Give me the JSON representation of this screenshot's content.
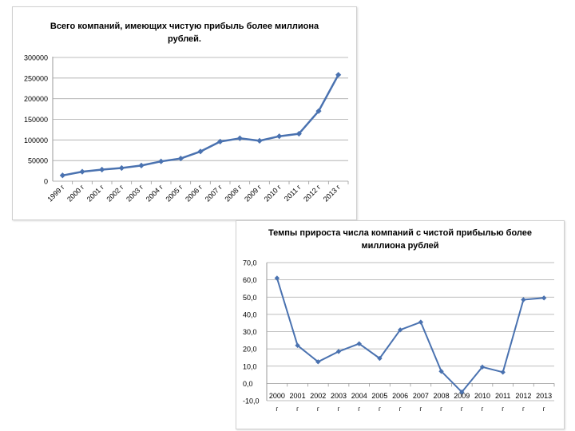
{
  "chart_data": [
    {
      "type": "line",
      "title": "Всего компаний, имеющих чистую прибыль более миллиона рублей.",
      "categories": [
        "1999 г",
        "2000 г",
        "2001 г",
        "2002 г",
        "2003 г",
        "2004 г",
        "2005 г",
        "2006 г",
        "2007 г",
        "2008 г",
        "2009 г",
        "2010 г",
        "2011 г",
        "2012 г",
        "2013 г"
      ],
      "values": [
        14000,
        23000,
        28000,
        32000,
        38000,
        48000,
        55000,
        72000,
        96000,
        104000,
        98000,
        109000,
        115000,
        170000,
        258000
      ],
      "yticks": [
        "0",
        "50000",
        "100000",
        "150000",
        "200000",
        "250000",
        "300000"
      ],
      "ylim": [
        0,
        300000
      ],
      "grid": true,
      "color": "#4a72b0"
    },
    {
      "type": "line",
      "title": "Темпы прироста числа компаний с чистой прибылью более миллиона рублей",
      "categories": [
        "2000",
        "2001",
        "2002",
        "2003",
        "2004",
        "2005",
        "2006",
        "2007",
        "2008",
        "2009",
        "2010",
        "2011",
        "2012",
        "2013"
      ],
      "category_suffix": "г",
      "values": [
        61,
        22,
        12.5,
        18.5,
        23,
        14.5,
        31,
        35.5,
        7,
        -5,
        9.5,
        6.5,
        48.5,
        49.5
      ],
      "yticks": [
        "70,0",
        "60,0",
        "50,0",
        "40,0",
        "30,0",
        "20,0",
        "10,0",
        "0,0",
        "-10,0"
      ],
      "ylim": [
        -10,
        70
      ],
      "grid": true,
      "color": "#4a72b0"
    }
  ]
}
